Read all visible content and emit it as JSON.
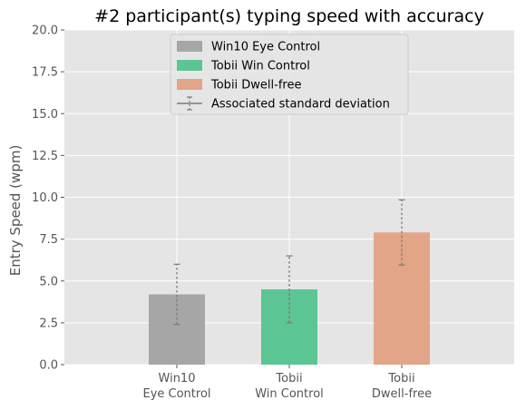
{
  "chart_data": {
    "type": "bar",
    "title": "#2 participant(s) typing speed with accuracy",
    "xlabel": "",
    "ylabel": "Entry Speed (wpm)",
    "ylim": [
      0,
      20
    ],
    "yticks": [
      "0.0",
      "2.5",
      "5.0",
      "7.5",
      "10.0",
      "12.5",
      "15.0",
      "17.5",
      "20.0"
    ],
    "ytick_values": [
      0,
      2.5,
      5,
      7.5,
      10,
      12.5,
      15,
      17.5,
      20
    ],
    "grid": true,
    "legend_position": "top-center",
    "categories": [
      {
        "line1": "Win10",
        "line2": "Eye Control"
      },
      {
        "line1": "Tobii",
        "line2": "Win Control"
      },
      {
        "line1": "Tobii",
        "line2": "Dwell-free"
      }
    ],
    "series": [
      {
        "name": "Win10 Eye Control",
        "value": 4.2,
        "std": 1.8,
        "color": "#a6a6a6"
      },
      {
        "name": "Tobii Win Control",
        "value": 4.5,
        "std": 2.0,
        "color": "#5cc594"
      },
      {
        "name": "Tobii Dwell-free",
        "value": 7.9,
        "std": 1.95,
        "color": "#e3a587"
      }
    ],
    "errorbar_legend": "Associated standard deviation",
    "colors": {
      "plot_background": "#e5e5e5",
      "grid": "#ffffff",
      "errorbar": "#7a7a7a"
    }
  }
}
